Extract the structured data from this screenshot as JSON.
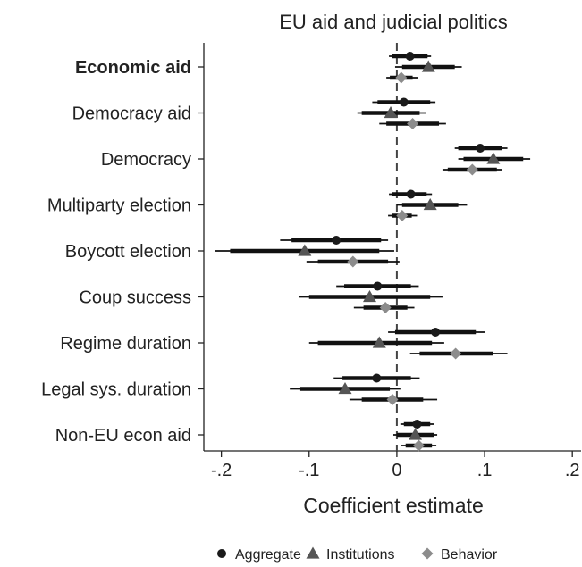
{
  "chart_data": {
    "type": "scatter",
    "subtype": "coefficient-plot",
    "title": "EU aid and judicial politics",
    "xlabel": "Coefficient estimate",
    "ylabel": "",
    "xlim": [
      -0.22,
      0.21
    ],
    "xticks": [
      -0.2,
      -0.1,
      0,
      0.1,
      0.2
    ],
    "xtick_labels": [
      "-.2",
      "-.1",
      "0",
      ".1",
      ".2"
    ],
    "reference_line": {
      "x": 0,
      "style": "dashed"
    },
    "grid": false,
    "legend_position": "bottom",
    "categories": [
      "Economic aid",
      "Democracy aid",
      "Democracy",
      "Multiparty election",
      "Boycott election",
      "Coup success",
      "Regime duration",
      "Legal sys. duration",
      "Non-EU econ aid"
    ],
    "bold_categories": [
      "Economic aid"
    ],
    "series": [
      {
        "name": "Aggregate",
        "marker": "circle",
        "color": "#1a1a1a",
        "points": [
          {
            "est": 0.015,
            "ci90": [
              -0.005,
              0.035
            ],
            "ci95": [
              -0.009,
              0.039
            ]
          },
          {
            "est": 0.008,
            "ci90": [
              -0.022,
              0.038
            ],
            "ci95": [
              -0.028,
              0.044
            ]
          },
          {
            "est": 0.095,
            "ci90": [
              0.07,
              0.12
            ],
            "ci95": [
              0.066,
              0.126
            ]
          },
          {
            "est": 0.016,
            "ci90": [
              -0.005,
              0.034
            ],
            "ci95": [
              -0.009,
              0.04
            ]
          },
          {
            "est": -0.069,
            "ci90": [
              -0.12,
              -0.018
            ],
            "ci95": [
              -0.133,
              -0.01
            ]
          },
          {
            "est": -0.022,
            "ci90": [
              -0.06,
              0.016
            ],
            "ci95": [
              -0.069,
              0.025
            ]
          },
          {
            "est": 0.044,
            "ci90": [
              -0.002,
              0.09
            ],
            "ci95": [
              -0.01,
              0.1
            ]
          },
          {
            "est": -0.023,
            "ci90": [
              -0.062,
              0.016
            ],
            "ci95": [
              -0.072,
              0.026
            ]
          },
          {
            "est": 0.023,
            "ci90": [
              0.008,
              0.038
            ],
            "ci95": [
              0.004,
              0.042
            ]
          }
        ]
      },
      {
        "name": "Institutions",
        "marker": "triangle",
        "color": "#555555",
        "points": [
          {
            "est": 0.036,
            "ci90": [
              0.006,
              0.066
            ],
            "ci95": [
              -0.002,
              0.074
            ]
          },
          {
            "est": -0.007,
            "ci90": [
              -0.04,
              0.026
            ],
            "ci95": [
              -0.045,
              0.033
            ]
          },
          {
            "est": 0.11,
            "ci90": [
              0.076,
              0.144
            ],
            "ci95": [
              0.07,
              0.152
            ]
          },
          {
            "est": 0.038,
            "ci90": [
              0.006,
              0.07
            ],
            "ci95": [
              0.0,
              0.08
            ]
          },
          {
            "est": -0.105,
            "ci90": [
              -0.19,
              -0.02
            ],
            "ci95": [
              -0.207,
              -0.003
            ]
          },
          {
            "est": -0.031,
            "ci90": [
              -0.1,
              0.038
            ],
            "ci95": [
              -0.112,
              0.052
            ]
          },
          {
            "est": -0.02,
            "ci90": [
              -0.09,
              0.04
            ],
            "ci95": [
              -0.1,
              0.054
            ]
          },
          {
            "est": -0.059,
            "ci90": [
              -0.11,
              -0.008
            ],
            "ci95": [
              -0.122,
              0.004
            ]
          },
          {
            "est": 0.021,
            "ci90": [
              0.0,
              0.042
            ],
            "ci95": [
              -0.004,
              0.046
            ]
          }
        ]
      },
      {
        "name": "Behavior",
        "marker": "diamond",
        "color": "#8c8c8c",
        "points": [
          {
            "est": 0.005,
            "ci90": [
              -0.008,
              0.018
            ],
            "ci95": [
              -0.012,
              0.024
            ]
          },
          {
            "est": 0.018,
            "ci90": [
              -0.012,
              0.048
            ],
            "ci95": [
              -0.02,
              0.056
            ]
          },
          {
            "est": 0.086,
            "ci90": [
              0.058,
              0.114
            ],
            "ci95": [
              0.052,
              0.12
            ]
          },
          {
            "est": 0.006,
            "ci90": [
              -0.005,
              0.017
            ],
            "ci95": [
              -0.01,
              0.023
            ]
          },
          {
            "est": -0.05,
            "ci90": [
              -0.09,
              -0.01
            ],
            "ci95": [
              -0.103,
              0.003
            ]
          },
          {
            "est": -0.013,
            "ci90": [
              -0.038,
              0.012
            ],
            "ci95": [
              -0.049,
              0.02
            ]
          },
          {
            "est": 0.067,
            "ci90": [
              0.026,
              0.11
            ],
            "ci95": [
              0.015,
              0.126
            ]
          },
          {
            "est": -0.005,
            "ci90": [
              -0.04,
              0.03
            ],
            "ci95": [
              -0.054,
              0.046
            ]
          },
          {
            "est": 0.025,
            "ci90": [
              0.01,
              0.04
            ],
            "ci95": [
              0.005,
              0.045
            ]
          }
        ]
      }
    ]
  }
}
